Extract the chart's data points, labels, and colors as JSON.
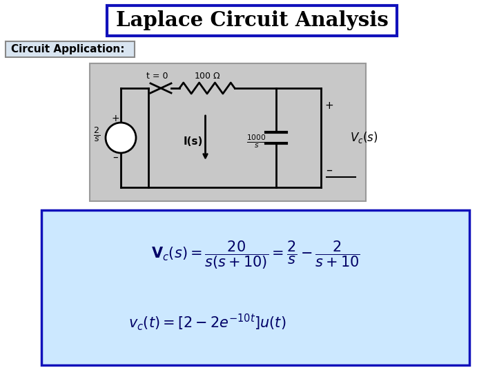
{
  "title": "Laplace Circuit Analysis",
  "subtitle": "Circuit Application:",
  "title_box_color": "#1111BB",
  "title_bg_color": "#FFFFFF",
  "title_text_color": "#000000",
  "subtitle_box_color": "#999999",
  "subtitle_bg_color": "#D8E4F0",
  "circuit_bg_color": "#C8C8C8",
  "formula_box_color": "#1111BB",
  "formula_bg_color": "#CCE8FF",
  "bg_color": "#FFFFFF"
}
